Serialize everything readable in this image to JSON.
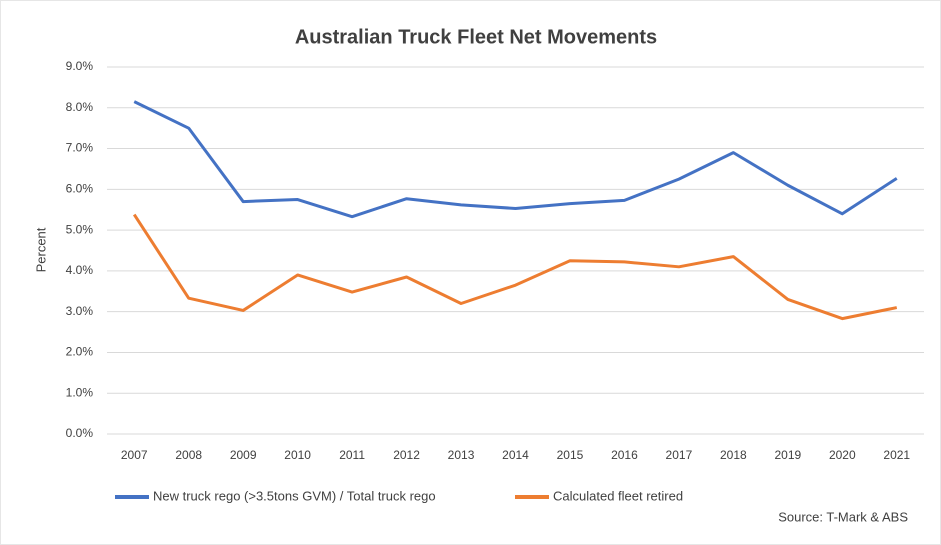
{
  "chart_data": {
    "type": "line",
    "title": "Australian Truck Fleet Net Movements",
    "y_label": "Percent",
    "source": "Source: T-Mark & ABS",
    "categories": [
      "2007",
      "2008",
      "2009",
      "2010",
      "2011",
      "2012",
      "2013",
      "2014",
      "2015",
      "2016",
      "2017",
      "2018",
      "2019",
      "2020",
      "2021"
    ],
    "series": [
      {
        "name": "New truck rego (>3.5tons GVM) / Total truck rego",
        "color": "#4472c4",
        "values": [
          8.15,
          7.5,
          5.7,
          5.75,
          5.33,
          5.77,
          5.62,
          5.53,
          5.65,
          5.73,
          6.25,
          6.9,
          6.1,
          5.4,
          6.27
        ]
      },
      {
        "name": "Calculated fleet retired",
        "color": "#ed7d31",
        "values": [
          5.38,
          3.33,
          3.03,
          3.9,
          3.48,
          3.85,
          3.2,
          3.65,
          4.25,
          4.22,
          4.1,
          4.35,
          3.3,
          2.83,
          3.1
        ]
      }
    ],
    "ylim": [
      0,
      9
    ],
    "yticks": [
      {
        "value": 0,
        "label": "0.0%"
      },
      {
        "value": 1,
        "label": "1.0%"
      },
      {
        "value": 2,
        "label": "2.0%"
      },
      {
        "value": 3,
        "label": "3.0%"
      },
      {
        "value": 4,
        "label": "4.0%"
      },
      {
        "value": 5,
        "label": "5.0%"
      },
      {
        "value": 6,
        "label": "6.0%"
      },
      {
        "value": 7,
        "label": "7.0%"
      },
      {
        "value": 8,
        "label": "8.0%"
      },
      {
        "value": 9,
        "label": "9.0%"
      }
    ],
    "grid": true,
    "legend": "bottom"
  }
}
